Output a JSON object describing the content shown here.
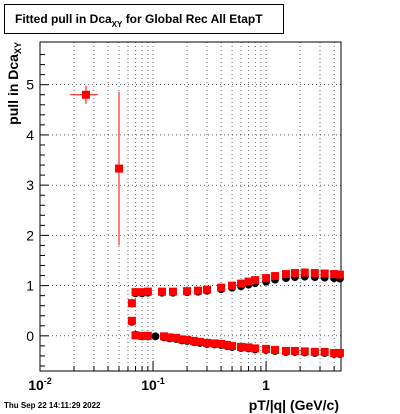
{
  "chart_data": {
    "type": "scatter",
    "title": {
      "main": "Fitted pull in Dca",
      "sub": "XY",
      "tail": "for Global Rec All EtapT"
    },
    "xlabel": "pT/|q| (GeV/c)",
    "ylabel": {
      "main": "pull in Dca",
      "sub": "XY"
    },
    "x_scale": "log",
    "xlim": [
      0.01,
      4.6
    ],
    "ylim": [
      -0.7,
      5.85
    ],
    "grid": true,
    "x_ticks": [
      {
        "value": 0.01,
        "label": "10",
        "exp": "-2"
      },
      {
        "value": 0.1,
        "label": "10",
        "exp": "-1"
      },
      {
        "value": 1,
        "label": "1",
        "exp": ""
      }
    ],
    "y_ticks": [
      {
        "value": 0,
        "label": "0"
      },
      {
        "value": 1,
        "label": "1"
      },
      {
        "value": 2,
        "label": "2"
      },
      {
        "value": 3,
        "label": "3"
      },
      {
        "value": 4,
        "label": "4"
      },
      {
        "value": 5,
        "label": "5"
      }
    ],
    "series": [
      {
        "color": "#000000",
        "marker": "circle",
        "points": [
          [
            0.065,
            0.28
          ],
          [
            0.07,
            0.02
          ],
          [
            0.08,
            -0.01
          ],
          [
            0.09,
            -0.01
          ],
          [
            0.105,
            -0.01
          ],
          [
            0.125,
            -0.03
          ],
          [
            0.14,
            -0.05
          ],
          [
            0.16,
            -0.06
          ],
          [
            0.18,
            -0.09
          ],
          [
            0.2,
            -0.1
          ],
          [
            0.23,
            -0.12
          ],
          [
            0.26,
            -0.14
          ],
          [
            0.3,
            -0.16
          ],
          [
            0.35,
            -0.17
          ],
          [
            0.4,
            -0.18
          ],
          [
            0.45,
            -0.2
          ],
          [
            0.5,
            -0.22
          ],
          [
            0.6,
            -0.24
          ],
          [
            0.7,
            -0.25
          ],
          [
            0.8,
            -0.27
          ],
          [
            1.0,
            -0.28
          ],
          [
            1.2,
            -0.3
          ],
          [
            1.5,
            -0.32
          ],
          [
            1.8,
            -0.32
          ],
          [
            2.2,
            -0.33
          ],
          [
            2.7,
            -0.34
          ],
          [
            3.3,
            -0.34
          ],
          [
            4.0,
            -0.36
          ],
          [
            4.5,
            -0.36
          ],
          [
            0.07,
            0.85
          ],
          [
            0.08,
            0.85
          ],
          [
            0.09,
            0.86
          ],
          [
            0.12,
            0.86
          ],
          [
            0.15,
            0.86
          ],
          [
            0.2,
            0.87
          ],
          [
            0.25,
            0.88
          ],
          [
            0.3,
            0.9
          ],
          [
            0.4,
            0.93
          ],
          [
            0.5,
            0.96
          ],
          [
            0.6,
            0.99
          ],
          [
            0.7,
            1.02
          ],
          [
            0.8,
            1.05
          ],
          [
            1.0,
            1.08
          ],
          [
            1.2,
            1.12
          ],
          [
            1.5,
            1.15
          ],
          [
            1.8,
            1.17
          ],
          [
            2.2,
            1.18
          ],
          [
            2.7,
            1.17
          ],
          [
            3.3,
            1.16
          ],
          [
            4.0,
            1.15
          ],
          [
            4.5,
            1.14
          ]
        ]
      },
      {
        "color": "#ff0000",
        "marker": "square",
        "points": [
          [
            0.0255,
            4.8,
            0.18,
            0.0185,
            0.0325
          ],
          [
            0.05,
            3.33,
            1.53,
            0.046,
            0.054
          ],
          [
            0.065,
            0.65,
            0.09,
            0.063,
            0.067
          ],
          [
            0.07,
            0.87,
            0.08,
            0.0685,
            0.0715
          ],
          [
            0.065,
            0.3,
            0,
            0.065,
            0.065
          ],
          [
            0.08,
            0.87,
            0,
            0.08,
            0.08
          ],
          [
            0.09,
            0.88,
            0,
            0.09,
            0.09
          ],
          [
            0.12,
            0.88,
            0,
            0.12,
            0.12
          ],
          [
            0.15,
            0.88,
            0,
            0.15,
            0.15
          ],
          [
            0.2,
            0.89,
            0,
            0.2,
            0.2
          ],
          [
            0.25,
            0.9,
            0,
            0.25,
            0.25
          ],
          [
            0.3,
            0.92,
            0,
            0.3,
            0.3
          ],
          [
            0.4,
            0.96,
            0,
            0.4,
            0.4
          ],
          [
            0.5,
            1.0,
            0,
            0.5,
            0.5
          ],
          [
            0.6,
            1.04,
            0,
            0.6,
            0.6
          ],
          [
            0.7,
            1.08,
            0,
            0.7,
            0.7
          ],
          [
            0.8,
            1.11,
            0,
            0.8,
            0.8
          ],
          [
            1.0,
            1.15,
            0,
            1.0,
            1.0
          ],
          [
            1.2,
            1.19,
            0,
            1.2,
            1.2
          ],
          [
            1.5,
            1.23,
            0,
            1.5,
            1.5
          ],
          [
            1.8,
            1.25,
            0,
            1.8,
            1.8
          ],
          [
            2.2,
            1.26,
            0,
            2.2,
            2.2
          ],
          [
            2.7,
            1.25,
            0,
            2.7,
            2.7
          ],
          [
            3.3,
            1.24,
            0,
            3.3,
            3.3
          ],
          [
            4.0,
            1.23,
            0,
            4.0,
            4.0
          ],
          [
            4.5,
            1.22,
            0,
            4.5,
            4.5
          ],
          [
            0.07,
            0.01,
            0,
            0.07,
            0.07
          ],
          [
            0.08,
            0.0,
            0,
            0.08,
            0.08
          ],
          [
            0.09,
            0.0,
            0,
            0.09,
            0.09
          ],
          [
            0.125,
            -0.01,
            0,
            0.125,
            0.125
          ],
          [
            0.14,
            -0.03,
            0,
            0.14,
            0.14
          ],
          [
            0.16,
            -0.04,
            0,
            0.16,
            0.16
          ],
          [
            0.18,
            -0.07,
            0,
            0.18,
            0.18
          ],
          [
            0.2,
            -0.08,
            0,
            0.2,
            0.2
          ],
          [
            0.23,
            -0.1,
            0,
            0.23,
            0.23
          ],
          [
            0.26,
            -0.12,
            0,
            0.26,
            0.26
          ],
          [
            0.3,
            -0.14,
            0,
            0.3,
            0.3
          ],
          [
            0.35,
            -0.15,
            0,
            0.35,
            0.35
          ],
          [
            0.4,
            -0.16,
            0,
            0.4,
            0.4
          ],
          [
            0.45,
            -0.18,
            0,
            0.45,
            0.45
          ],
          [
            0.5,
            -0.2,
            0,
            0.5,
            0.5
          ],
          [
            0.6,
            -0.22,
            0,
            0.6,
            0.6
          ],
          [
            0.7,
            -0.23,
            0,
            0.7,
            0.7
          ],
          [
            0.8,
            -0.25,
            0,
            0.8,
            0.8
          ],
          [
            1.0,
            -0.26,
            0,
            1.0,
            1.0
          ],
          [
            1.2,
            -0.28,
            0,
            1.2,
            1.2
          ],
          [
            1.5,
            -0.3,
            0,
            1.5,
            1.5
          ],
          [
            1.8,
            -0.3,
            0,
            1.8,
            1.8
          ],
          [
            2.2,
            -0.31,
            0,
            2.2,
            2.2
          ],
          [
            2.7,
            -0.32,
            0,
            2.7,
            2.7
          ],
          [
            3.3,
            -0.32,
            0,
            3.3,
            3.3
          ],
          [
            4.0,
            -0.34,
            0,
            4.0,
            4.0
          ],
          [
            4.5,
            -0.34,
            0,
            4.5,
            4.5
          ]
        ]
      }
    ]
  },
  "timestamp": "Thu Sep 22 14:11:29 2022"
}
